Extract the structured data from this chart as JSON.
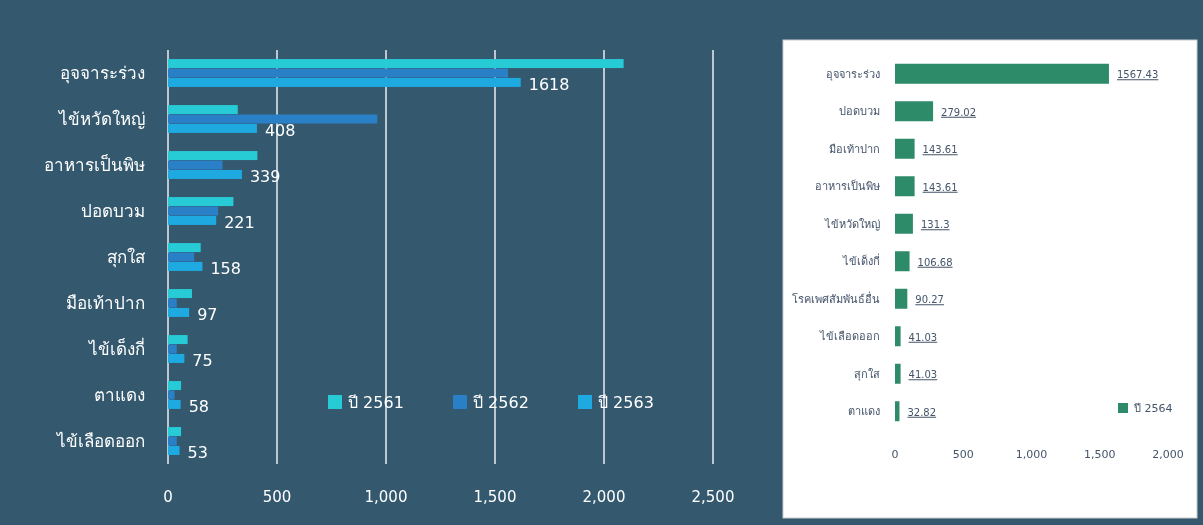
{
  "chart_data": [
    {
      "type": "bar",
      "orientation": "horizontal",
      "categories": [
        "อุจจาระร่วง",
        "ไข้หวัดใหญ่",
        "อาหารเป็นพิษ",
        "ปอดบวม",
        "สุกใส",
        "มือเท้าปาก",
        "ไข้เด็งกี่",
        "ตาแดง",
        "ไข้เลือดออก"
      ],
      "series": [
        {
          "name": "ปี 2561",
          "color": "#26cbd6",
          "values": [
            2090,
            320,
            410,
            300,
            150,
            110,
            90,
            60,
            60
          ]
        },
        {
          "name": "ปี 2562",
          "color": "#2a80c6",
          "values": [
            1560,
            960,
            250,
            230,
            120,
            40,
            40,
            30,
            40
          ]
        },
        {
          "name": "ปี 2563",
          "color": "#1eaae0",
          "values": [
            1618,
            408,
            339,
            221,
            158,
            97,
            75,
            58,
            53
          ],
          "value_labels": [
            "1618",
            "408",
            "339",
            "221",
            "158",
            "97",
            "75",
            "58",
            "53"
          ]
        }
      ],
      "xlim": [
        0,
        2500
      ],
      "xticks": [
        {
          "value": 0,
          "label": "0"
        },
        {
          "value": 500,
          "label": "500"
        },
        {
          "value": 1000,
          "label": "1,000"
        },
        {
          "value": 1500,
          "label": "1,500"
        },
        {
          "value": 2000,
          "label": "2,000"
        },
        {
          "value": 2500,
          "label": "2,500"
        }
      ],
      "grid": "x",
      "legend": "bottom right"
    },
    {
      "type": "bar",
      "orientation": "horizontal",
      "categories": [
        "อุจจาระร่วง",
        "ปอดบวม",
        "มือเท้าปาก",
        "อาหารเป็นพิษ",
        "ไข้หวัดใหญ่",
        "ไข้เด็งกี่",
        "โรคเพศสัมพันธ์อื่น",
        "ไข้เลือดออก",
        "สุกใส",
        "ตาแดง"
      ],
      "series": [
        {
          "name": "ปี 2564",
          "color": "#2e8b6a",
          "values": [
            1567.43,
            279.02,
            143.61,
            143.61,
            131.3,
            106.68,
            90.27,
            41.03,
            41.03,
            32.82
          ]
        }
      ],
      "xlim": [
        0,
        2000
      ],
      "xticks": [
        {
          "value": 0,
          "label": "0"
        },
        {
          "value": 500,
          "label": "500"
        },
        {
          "value": 1000,
          "label": "1,000"
        },
        {
          "value": 1500,
          "label": "1,500"
        },
        {
          "value": 2000,
          "label": "2,000"
        }
      ],
      "data_labels": true,
      "legend": "bottom right"
    }
  ]
}
